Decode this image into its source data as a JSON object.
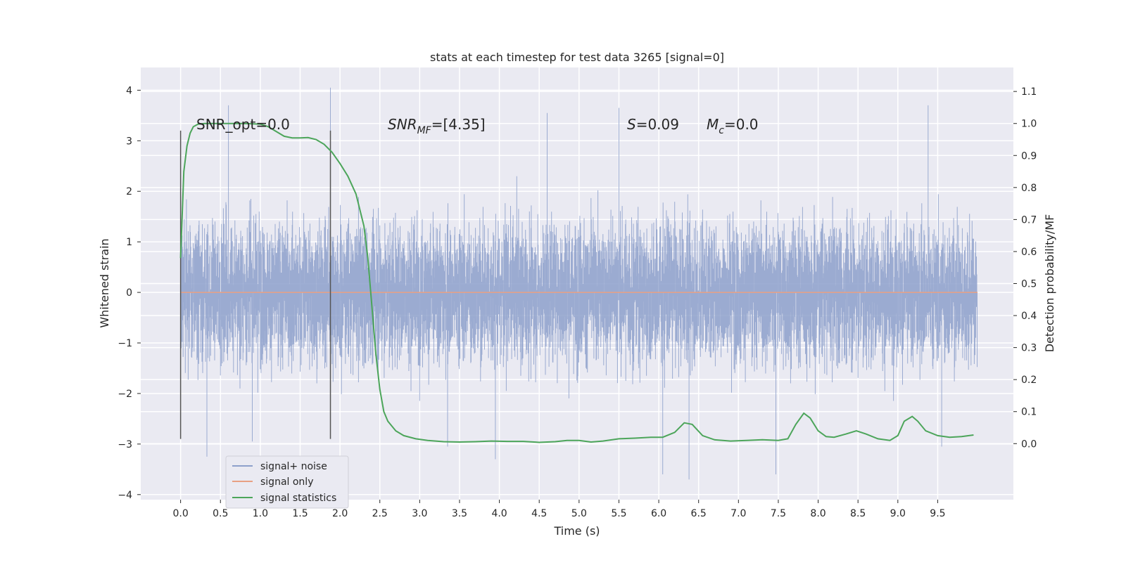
{
  "chart_data": {
    "type": "line",
    "title": "stats at each timestep for test data 3265 [signal=0]",
    "xlabel": "Time (s)",
    "ylabel": "Whitened strain",
    "y2label": "Detection probability/MF",
    "xlim": [
      -0.5,
      10.45
    ],
    "ylim": [
      -4.1,
      4.45
    ],
    "y2lim": [
      -0.175,
      1.175
    ],
    "grid": true,
    "legend_position": "lower-left",
    "x_ticks": [
      0.0,
      0.5,
      1.0,
      1.5,
      2.0,
      2.5,
      3.0,
      3.5,
      4.0,
      4.5,
      5.0,
      5.5,
      6.0,
      6.5,
      7.0,
      7.5,
      8.0,
      8.5,
      9.0,
      9.5
    ],
    "x_tick_labels": [
      "0.0",
      "0.5",
      "1.0",
      "1.5",
      "2.0",
      "2.5",
      "3.0",
      "3.5",
      "4.0",
      "4.5",
      "5.0",
      "5.5",
      "6.0",
      "6.5",
      "7.0",
      "7.5",
      "8.0",
      "8.5",
      "9.0",
      "9.5"
    ],
    "y_ticks": [
      4,
      3,
      2,
      1,
      0,
      -1,
      -2,
      -3,
      -4
    ],
    "y_tick_labels": [
      "4",
      "3",
      "2",
      "1",
      "0",
      "−1",
      "−2",
      "−3",
      "−4"
    ],
    "y2_ticks": [
      1.1,
      1.0,
      0.9,
      0.8,
      0.7,
      0.6,
      0.5,
      0.4,
      0.3,
      0.2,
      0.1,
      0.0
    ],
    "y2_tick_labels": [
      "1.1",
      "1.0",
      "0.9",
      "0.8",
      "0.7",
      "0.6",
      "0.5",
      "0.4",
      "0.3",
      "0.2",
      "0.1",
      "0.0"
    ],
    "annotations": {
      "snr_opt": "SNR_opt=0.0",
      "snr_mf_name": "SNR",
      "snr_mf_sub": "MF",
      "snr_mf_value": "=[4.35]",
      "s_name": "S",
      "s_value": "=0.09",
      "mc_name": "M",
      "mc_sub": "c",
      "mc_value": "=0.0"
    },
    "vertical_markers": [
      {
        "x": 0.0,
        "y_range": [
          -2.9,
          3.2
        ]
      },
      {
        "x": 1.88,
        "y_range": [
          -2.9,
          3.2
        ]
      }
    ],
    "series": [
      {
        "name": "signal+ noise",
        "color": "#8da0cb",
        "description_values": {
          "t_start": 0.0,
          "t_end": 10.0,
          "typical_range": [
            -1.5,
            1.5
          ],
          "extremes": [
            -3.75,
            4.05
          ]
        },
        "spikes": [
          [
            0.33,
            -3.25
          ],
          [
            0.6,
            3.7
          ],
          [
            0.9,
            -2.95
          ],
          [
            1.88,
            4.05
          ],
          [
            3.35,
            -3.05
          ],
          [
            3.95,
            -3.3
          ],
          [
            4.6,
            3.55
          ],
          [
            5.5,
            3.65
          ],
          [
            6.05,
            -3.6
          ],
          [
            6.38,
            -3.7
          ],
          [
            7.47,
            -3.6
          ],
          [
            9.55,
            -3.05
          ],
          [
            9.38,
            3.7
          ]
        ]
      },
      {
        "name": "signal only",
        "color": "#e8a083",
        "x": [
          0.0,
          10.0
        ],
        "y": [
          0.0,
          0.0
        ]
      },
      {
        "name": "signal statistics",
        "color": "#4ca55a",
        "axis": "right",
        "x": [
          0.0,
          0.04,
          0.08,
          0.12,
          0.16,
          0.22,
          0.3,
          0.5,
          0.8,
          1.0,
          1.1,
          1.2,
          1.3,
          1.4,
          1.5,
          1.6,
          1.7,
          1.8,
          1.9,
          2.0,
          2.1,
          2.2,
          2.3,
          2.35,
          2.4,
          2.45,
          2.5,
          2.55,
          2.6,
          2.7,
          2.8,
          2.95,
          3.1,
          3.3,
          3.5,
          3.7,
          3.9,
          4.1,
          4.3,
          4.5,
          4.7,
          4.85,
          5.0,
          5.15,
          5.3,
          5.5,
          5.7,
          5.9,
          6.05,
          6.2,
          6.32,
          6.42,
          6.55,
          6.7,
          6.9,
          7.1,
          7.3,
          7.5,
          7.62,
          7.72,
          7.82,
          7.9,
          8.0,
          8.1,
          8.2,
          8.35,
          8.48,
          8.6,
          8.75,
          8.9,
          9.0,
          9.08,
          9.18,
          9.25,
          9.35,
          9.5,
          9.65,
          9.8,
          9.95
        ],
        "y": [
          0.58,
          0.85,
          0.93,
          0.97,
          0.99,
          0.998,
          1.0,
          1.0,
          1.0,
          0.998,
          0.99,
          0.975,
          0.96,
          0.955,
          0.955,
          0.956,
          0.95,
          0.935,
          0.91,
          0.875,
          0.835,
          0.78,
          0.68,
          0.58,
          0.43,
          0.28,
          0.17,
          0.1,
          0.07,
          0.04,
          0.025,
          0.015,
          0.01,
          0.006,
          0.005,
          0.006,
          0.008,
          0.007,
          0.007,
          0.004,
          0.006,
          0.01,
          0.01,
          0.005,
          0.008,
          0.015,
          0.017,
          0.02,
          0.02,
          0.035,
          0.065,
          0.06,
          0.025,
          0.012,
          0.008,
          0.01,
          0.012,
          0.01,
          0.015,
          0.06,
          0.095,
          0.08,
          0.04,
          0.022,
          0.02,
          0.03,
          0.04,
          0.03,
          0.015,
          0.01,
          0.025,
          0.07,
          0.085,
          0.07,
          0.04,
          0.025,
          0.02,
          0.022,
          0.027
        ]
      }
    ]
  }
}
